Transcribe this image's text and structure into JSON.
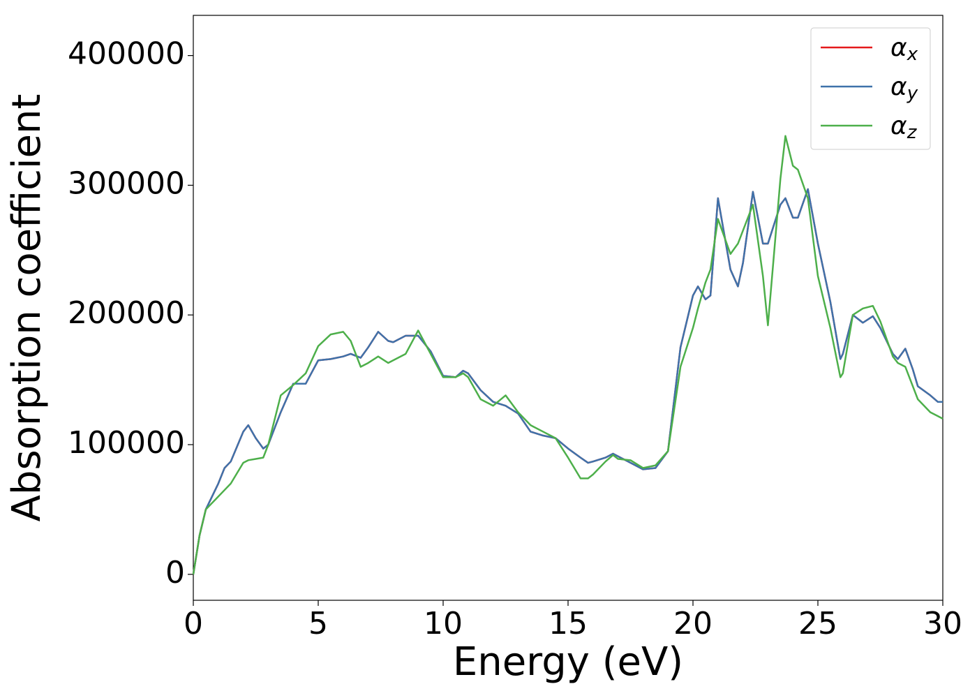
{
  "chart_data": {
    "type": "line",
    "x_label": "Energy (eV)",
    "y_label": "Absorption coefficient",
    "x": [
      0,
      0.25,
      0.5,
      1.0,
      1.25,
      1.5,
      2.0,
      2.2,
      2.5,
      2.8,
      3.0,
      3.5,
      4.0,
      4.5,
      5.0,
      5.5,
      6.0,
      6.3,
      6.7,
      7.0,
      7.4,
      7.8,
      8.0,
      8.5,
      9.0,
      9.5,
      10.0,
      10.5,
      10.8,
      11.0,
      11.5,
      12.0,
      12.5,
      13.0,
      13.5,
      14.0,
      14.5,
      15.0,
      15.5,
      15.8,
      16.0,
      16.5,
      16.8,
      17.0,
      17.5,
      18.0,
      18.5,
      19.0,
      19.5,
      20.0,
      20.2,
      20.5,
      20.7,
      21.0,
      21.5,
      21.8,
      22.0,
      22.4,
      22.8,
      23.0,
      23.5,
      23.7,
      24.0,
      24.2,
      24.6,
      25.0,
      25.5,
      25.9,
      26.0,
      26.4,
      26.8,
      27.2,
      27.5,
      28.0,
      28.2,
      28.5,
      28.8,
      29.0,
      29.5,
      29.8,
      30.0
    ],
    "series": [
      {
        "name": "αx",
        "color": "#e41a1c",
        "values": [
          0,
          30000,
          50000,
          70000,
          82000,
          87000,
          110000,
          115000,
          105000,
          97000,
          100000,
          125000,
          147000,
          147000,
          165000,
          166000,
          168000,
          170000,
          167000,
          175000,
          187000,
          180000,
          179000,
          184000,
          184000,
          172000,
          153000,
          152000,
          157000,
          155000,
          142000,
          133000,
          130000,
          124000,
          110000,
          107000,
          105000,
          97000,
          90000,
          86000,
          87000,
          90000,
          93000,
          91000,
          86000,
          81000,
          82000,
          95000,
          175000,
          215000,
          222000,
          212000,
          215000,
          290000,
          235000,
          222000,
          240000,
          295000,
          255000,
          255000,
          285000,
          290000,
          275000,
          275000,
          297000,
          255000,
          210000,
          166000,
          170000,
          200000,
          194000,
          199000,
          190000,
          170000,
          166000,
          174000,
          158000,
          145000,
          138000,
          133000,
          133000
        ]
      },
      {
        "name": "αy",
        "color": "#3e72aa",
        "values": [
          0,
          30000,
          50000,
          70000,
          82000,
          87000,
          110000,
          115000,
          105000,
          97000,
          100000,
          125000,
          147000,
          147000,
          165000,
          166000,
          168000,
          170000,
          167000,
          175000,
          187000,
          180000,
          179000,
          184000,
          184000,
          172000,
          153000,
          152000,
          157000,
          155000,
          142000,
          133000,
          130000,
          124000,
          110000,
          107000,
          105000,
          97000,
          90000,
          86000,
          87000,
          90000,
          93000,
          91000,
          86000,
          81000,
          82000,
          95000,
          175000,
          215000,
          222000,
          212000,
          215000,
          290000,
          235000,
          222000,
          240000,
          295000,
          255000,
          255000,
          285000,
          290000,
          275000,
          275000,
          297000,
          255000,
          210000,
          166000,
          170000,
          200000,
          194000,
          199000,
          190000,
          170000,
          166000,
          174000,
          158000,
          145000,
          138000,
          133000,
          133000
        ]
      },
      {
        "name": "αz",
        "color": "#4daf4a",
        "values": [
          0,
          30000,
          50000,
          60000,
          65000,
          70000,
          86000,
          88000,
          89000,
          90000,
          100000,
          138000,
          146000,
          155000,
          176000,
          185000,
          187000,
          180000,
          160000,
          163000,
          168000,
          163000,
          165000,
          170000,
          188000,
          170000,
          152000,
          152000,
          155000,
          152000,
          135000,
          130000,
          138000,
          125000,
          115000,
          110000,
          105000,
          90000,
          74000,
          74000,
          77000,
          87000,
          92000,
          89000,
          88000,
          82000,
          84000,
          95000,
          160000,
          190000,
          205000,
          225000,
          235000,
          274000,
          247000,
          255000,
          265000,
          285000,
          230000,
          192000,
          305000,
          338000,
          315000,
          312000,
          290000,
          230000,
          190000,
          152000,
          155000,
          200000,
          205000,
          207000,
          195000,
          168000,
          163000,
          160000,
          145000,
          135000,
          125000,
          122000,
          120000
        ]
      }
    ],
    "xlim": [
      0,
      30
    ],
    "xticks": [
      0,
      5,
      10,
      15,
      20,
      25,
      30
    ],
    "ylim": [
      -20000,
      431000
    ],
    "yticks": [
      0,
      100000,
      200000,
      300000,
      400000
    ],
    "legend": "upper right"
  }
}
